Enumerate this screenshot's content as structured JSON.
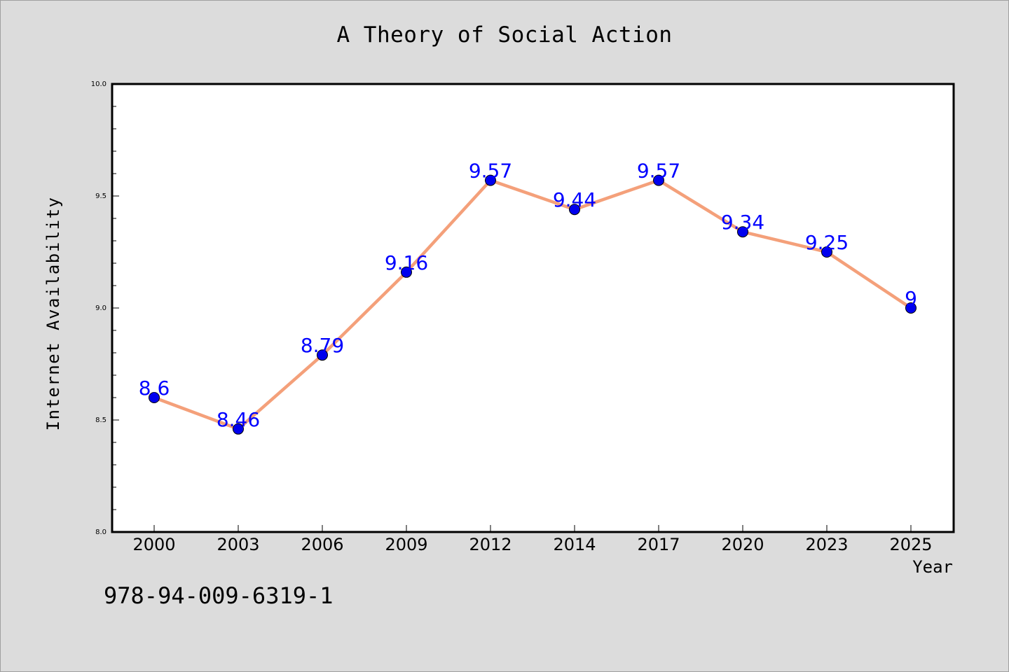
{
  "chart_data": {
    "type": "line",
    "title": "A Theory of Social Action",
    "xlabel": "Year",
    "ylabel": "Internet Availability",
    "categories": [
      "2000",
      "2003",
      "2006",
      "2009",
      "2012",
      "2014",
      "2017",
      "2020",
      "2023",
      "2025"
    ],
    "series": [
      {
        "values": [
          8.6,
          8.46,
          8.79,
          9.16,
          9.57,
          9.44,
          9.57,
          9.34,
          9.25,
          9.0
        ],
        "labels": [
          "8.6",
          "8.46",
          "8.79",
          "9.16",
          "9.57",
          "9.44",
          "9.57",
          "9.34",
          "9.25",
          "9"
        ],
        "line_color": "#f4a07a",
        "marker_color": "#0000ee"
      }
    ],
    "ylim": [
      8.0,
      10.0
    ],
    "yticks": [
      "8.0",
      "8.5",
      "9.0",
      "9.5",
      "10.0"
    ],
    "grid": false,
    "legend": false
  },
  "footer": {
    "isbn": "978-94-009-6319-1"
  },
  "colors": {
    "background": "#dcdcdc",
    "plot_background": "#ffffff",
    "data_label": "#0000ff"
  }
}
